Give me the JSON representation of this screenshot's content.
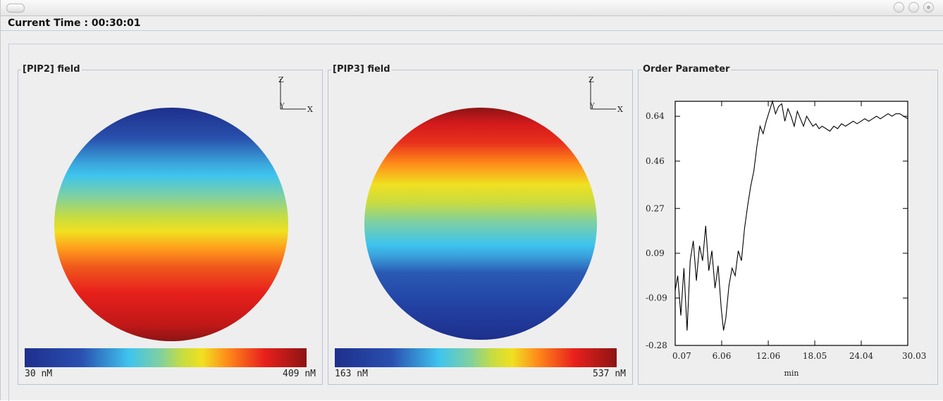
{
  "window": {
    "title_controls": [
      "minimize-button",
      "maximize-button",
      "close-button"
    ]
  },
  "status": {
    "current_time": "Current Time : 00:30:01"
  },
  "pip2": {
    "title": "[PIP2] field",
    "axis_z": "Z",
    "axis_y": "Y",
    "axis_x": "X",
    "colorbar_min": "30 nM",
    "colorbar_max": "409 nM"
  },
  "pip3": {
    "title": "[PIP3] field",
    "axis_z": "Z",
    "axis_y": "Y",
    "axis_x": "X",
    "colorbar_min": "163 nM",
    "colorbar_max": "537 nM"
  },
  "order_panel": {
    "title": "Order Parameter"
  },
  "colors": {
    "jet": [
      "#1e2f8c",
      "#2a4fb0",
      "#3ec4ee",
      "#7fd0a0",
      "#f0e020",
      "#ff8a1a",
      "#e8201c",
      "#8c1414"
    ]
  },
  "chart_data": {
    "type": "line",
    "title": "",
    "xlabel": "min",
    "ylabel": "",
    "xlim": [
      0.07,
      30.03
    ],
    "ylim": [
      -0.28,
      0.7
    ],
    "x_ticks": [
      0.07,
      6.06,
      12.06,
      18.05,
      24.04,
      30.03
    ],
    "x_tick_labels": [
      "0.07",
      "6.06",
      "12.06",
      "18.05",
      "24.04",
      "30.03"
    ],
    "y_ticks": [
      -0.28,
      -0.09,
      0.09,
      0.27,
      0.46,
      0.64
    ],
    "y_tick_labels": [
      "-0.28",
      "-0.09",
      "0.09",
      "0.27",
      "0.46",
      "0.64"
    ],
    "grid": false,
    "series": [
      {
        "name": "",
        "x": [
          0.07,
          0.4,
          0.8,
          1.2,
          1.6,
          2.0,
          2.4,
          2.8,
          3.2,
          3.6,
          4.0,
          4.4,
          4.8,
          5.2,
          5.6,
          6.0,
          6.3,
          6.6,
          7.0,
          7.4,
          7.8,
          8.2,
          8.6,
          9.0,
          9.4,
          9.8,
          10.2,
          10.6,
          11.0,
          11.4,
          11.8,
          12.2,
          12.6,
          13.0,
          13.4,
          13.8,
          14.2,
          14.6,
          15.0,
          15.4,
          15.8,
          16.2,
          16.6,
          17.0,
          17.4,
          17.8,
          18.2,
          18.6,
          19.0,
          19.5,
          20.0,
          20.5,
          21.0,
          21.5,
          22.0,
          22.5,
          23.0,
          23.5,
          24.0,
          24.5,
          25.0,
          25.5,
          26.0,
          26.5,
          27.0,
          27.5,
          28.0,
          28.5,
          29.0,
          29.5,
          30.03
        ],
        "y": [
          -0.06,
          0.0,
          -0.16,
          0.03,
          -0.22,
          0.06,
          0.14,
          -0.02,
          0.12,
          0.06,
          0.2,
          0.02,
          0.1,
          -0.05,
          0.04,
          -0.13,
          -0.22,
          -0.17,
          -0.04,
          0.03,
          0.0,
          0.1,
          0.06,
          0.19,
          0.28,
          0.36,
          0.42,
          0.52,
          0.6,
          0.57,
          0.62,
          0.66,
          0.7,
          0.65,
          0.68,
          0.69,
          0.62,
          0.67,
          0.64,
          0.6,
          0.66,
          0.63,
          0.6,
          0.64,
          0.62,
          0.6,
          0.61,
          0.59,
          0.6,
          0.59,
          0.58,
          0.6,
          0.59,
          0.61,
          0.6,
          0.61,
          0.62,
          0.61,
          0.62,
          0.63,
          0.62,
          0.63,
          0.64,
          0.63,
          0.64,
          0.65,
          0.64,
          0.65,
          0.65,
          0.64,
          0.63
        ]
      }
    ]
  }
}
